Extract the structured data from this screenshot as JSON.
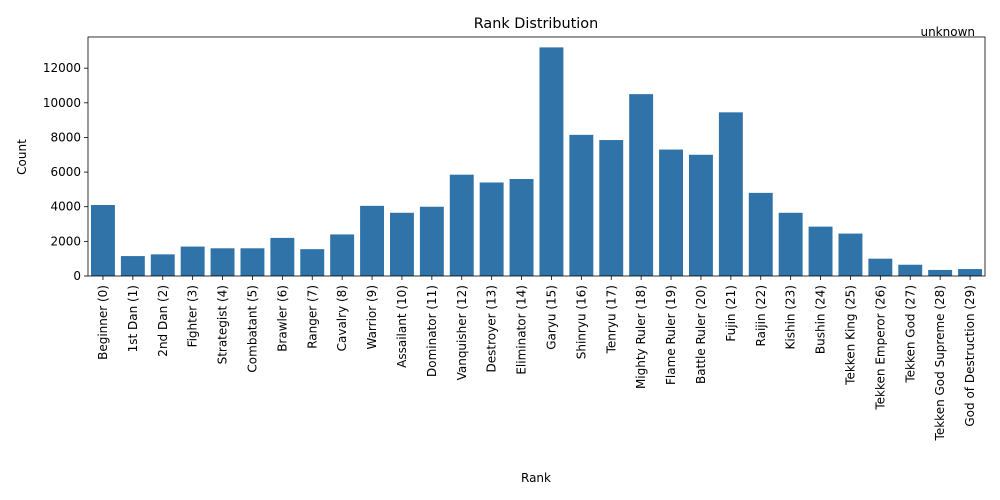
{
  "chart_data": {
    "type": "bar",
    "title": "Rank Distribution",
    "xlabel": "Rank",
    "ylabel": "Count",
    "ylim": [
      0,
      13800
    ],
    "yticks": [
      0,
      2000,
      4000,
      6000,
      8000,
      10000,
      12000
    ],
    "grid": false,
    "bar_color": "#2f73a8",
    "annotation": "unknown",
    "categories": [
      "Beginner (0)",
      "1st Dan (1)",
      "2nd Dan (2)",
      "Fighter (3)",
      "Strategist (4)",
      "Combatant (5)",
      "Brawler (6)",
      "Ranger (7)",
      "Cavalry (8)",
      "Warrior (9)",
      "Assailant (10)",
      "Dominator (11)",
      "Vanquisher (12)",
      "Destroyer (13)",
      "Eliminator (14)",
      "Garyu (15)",
      "Shinryu (16)",
      "Tenryu (17)",
      "Mighty Ruler (18)",
      "Flame Ruler (19)",
      "Battle Ruler (20)",
      "Fujin (21)",
      "Raijin (22)",
      "Kishin (23)",
      "Bushin (24)",
      "Tekken King (25)",
      "Tekken Emperor (26)",
      "Tekken God (27)",
      "Tekken God Supreme (28)",
      "God of Destruction (29)"
    ],
    "values": [
      4100,
      1150,
      1250,
      1700,
      1600,
      1600,
      2200,
      1550,
      2400,
      4050,
      3650,
      4000,
      5850,
      5400,
      5600,
      13200,
      8150,
      7850,
      10500,
      7300,
      7000,
      9450,
      4800,
      3650,
      2850,
      2450,
      1000,
      650,
      350,
      400
    ]
  }
}
